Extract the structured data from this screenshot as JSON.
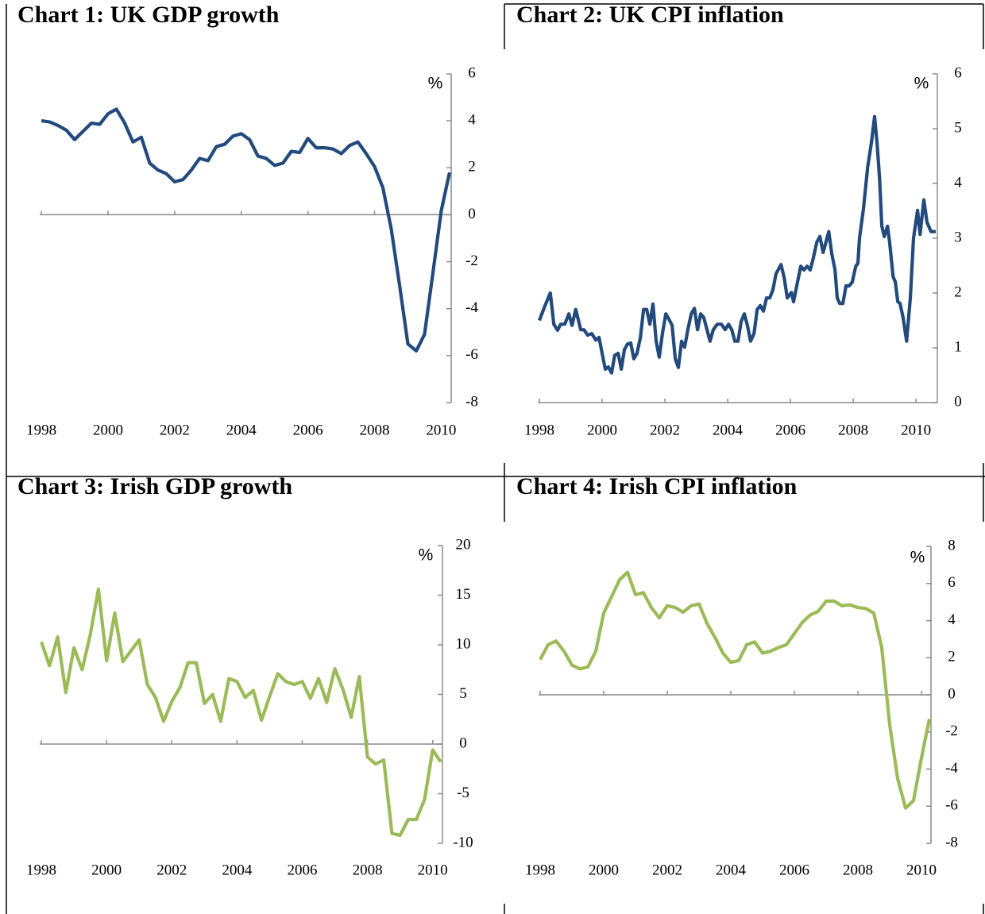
{
  "chart_data": [
    {
      "type": "line",
      "title": "Chart 1: UK GDP growth",
      "ylabel": "%",
      "color": "#234a7c",
      "x": [
        1998,
        1998.25,
        1998.5,
        1998.75,
        1999,
        1999.25,
        1999.5,
        1999.75,
        2000,
        2000.25,
        2000.5,
        2000.75,
        2001,
        2001.25,
        2001.5,
        2001.75,
        2002,
        2002.25,
        2002.5,
        2002.75,
        2003,
        2003.25,
        2003.5,
        2003.75,
        2004,
        2004.25,
        2004.5,
        2004.75,
        2005,
        2005.25,
        2005.5,
        2005.75,
        2006,
        2006.25,
        2006.5,
        2006.75,
        2007,
        2007.25,
        2007.5,
        2007.75,
        2008,
        2008.25,
        2008.5,
        2008.75,
        2009,
        2009.25,
        2009.5,
        2009.75,
        2010,
        2010.25
      ],
      "values": [
        4.0,
        3.95,
        3.8,
        3.6,
        3.2,
        3.55,
        3.9,
        3.85,
        4.3,
        4.5,
        3.9,
        3.1,
        3.3,
        2.2,
        1.9,
        1.75,
        1.4,
        1.5,
        1.9,
        2.4,
        2.3,
        2.9,
        3.0,
        3.35,
        3.45,
        3.2,
        2.5,
        2.4,
        2.1,
        2.2,
        2.7,
        2.65,
        3.25,
        2.85,
        2.85,
        2.8,
        2.6,
        2.95,
        3.1,
        2.6,
        2.05,
        1.15,
        -0.6,
        -3.0,
        -5.5,
        -5.8,
        -5.1,
        -2.5,
        0.15,
        1.8
      ],
      "xlim": [
        1997.95,
        2010.3
      ],
      "xticks": [
        1998,
        2000,
        2002,
        2004,
        2006,
        2008,
        2010
      ],
      "ylim": [
        -8,
        6
      ],
      "yticks": [
        -8,
        -6,
        -4,
        -2,
        0,
        2,
        4,
        6
      ]
    },
    {
      "type": "line",
      "title": "Chart 2: UK CPI inflation",
      "ylabel": "%",
      "color": "#234a7c",
      "x": [
        1998.0,
        1998.18,
        1998.35,
        1998.46,
        1998.58,
        1998.68,
        1998.81,
        1998.94,
        1999.04,
        1999.16,
        1999.32,
        1999.42,
        1999.54,
        1999.67,
        1999.8,
        1999.9,
        2000.0,
        2000.1,
        2000.2,
        2000.3,
        2000.4,
        2000.51,
        2000.61,
        2000.71,
        2000.81,
        2000.91,
        2001.01,
        2001.11,
        2001.22,
        2001.32,
        2001.42,
        2001.52,
        2001.62,
        2001.72,
        2001.82,
        2001.92,
        2002.03,
        2002.13,
        2002.23,
        2002.33,
        2002.43,
        2002.53,
        2002.63,
        2002.73,
        2002.84,
        2002.94,
        2003.04,
        2003.14,
        2003.24,
        2003.34,
        2003.44,
        2003.54,
        2003.67,
        2003.8,
        2003.92,
        2004.03,
        2004.13,
        2004.23,
        2004.33,
        2004.43,
        2004.53,
        2004.63,
        2004.73,
        2004.84,
        2004.94,
        2005.04,
        2005.14,
        2005.24,
        2005.34,
        2005.44,
        2005.54,
        2005.7,
        2005.8,
        2005.9,
        2006.03,
        2006.1,
        2006.2,
        2006.33,
        2006.43,
        2006.53,
        2006.63,
        2006.73,
        2006.84,
        2006.94,
        2007.04,
        2007.11,
        2007.22,
        2007.32,
        2007.42,
        2007.49,
        2007.57,
        2007.67,
        2007.77,
        2007.87,
        2007.97,
        2008.08,
        2008.15,
        2008.2,
        2008.33,
        2008.46,
        2008.58,
        2008.68,
        2008.76,
        2008.84,
        2008.91,
        2008.99,
        2009.09,
        2009.16,
        2009.27,
        2009.34,
        2009.42,
        2009.49,
        2009.59,
        2009.7,
        2009.82,
        2009.92,
        2010.05,
        2010.13,
        2010.25,
        2010.35,
        2010.48,
        2010.63
      ],
      "values": [
        1.5,
        1.77,
        2.0,
        1.43,
        1.32,
        1.43,
        1.43,
        1.62,
        1.41,
        1.7,
        1.33,
        1.33,
        1.23,
        1.26,
        1.14,
        1.19,
        0.9,
        0.61,
        0.65,
        0.54,
        0.86,
        0.9,
        0.61,
        0.97,
        1.07,
        1.09,
        0.8,
        0.9,
        1.19,
        1.7,
        1.7,
        1.43,
        1.8,
        1.12,
        0.83,
        1.26,
        1.62,
        1.52,
        1.41,
        0.8,
        0.64,
        1.12,
        1.01,
        1.33,
        1.62,
        1.72,
        1.33,
        1.62,
        1.55,
        1.33,
        1.12,
        1.33,
        1.43,
        1.43,
        1.33,
        1.43,
        1.33,
        1.12,
        1.12,
        1.48,
        1.62,
        1.41,
        1.12,
        1.26,
        1.7,
        1.77,
        1.67,
        1.91,
        1.91,
        2.06,
        2.35,
        2.52,
        2.28,
        1.91,
        2.01,
        1.84,
        2.13,
        2.49,
        2.42,
        2.49,
        2.42,
        2.64,
        2.93,
        3.03,
        2.74,
        2.88,
        3.12,
        2.71,
        2.42,
        1.91,
        1.81,
        1.81,
        2.13,
        2.13,
        2.2,
        2.49,
        2.54,
        3.0,
        3.55,
        4.3,
        4.74,
        5.22,
        4.74,
        4.09,
        3.22,
        3.03,
        3.22,
        2.93,
        2.3,
        2.2,
        1.84,
        1.81,
        1.55,
        1.12,
        1.91,
        3.0,
        3.51,
        3.07,
        3.7,
        3.29,
        3.12,
        3.12
      ],
      "xlim": [
        1997.95,
        2010.68
      ],
      "xticks": [
        1998,
        2000,
        2002,
        2004,
        2006,
        2008,
        2010
      ],
      "ylim": [
        0,
        6
      ],
      "yticks": [
        0,
        1,
        2,
        3,
        4,
        5,
        6
      ]
    },
    {
      "type": "line",
      "title": "Chart 3: Irish GDP growth",
      "ylabel": "%",
      "color": "#9bbb59",
      "x": [
        1998,
        1998.25,
        1998.5,
        1998.75,
        1999,
        1999.25,
        1999.5,
        1999.75,
        2000,
        2000.25,
        2000.5,
        2000.75,
        2001,
        2001.25,
        2001.5,
        2001.75,
        2002,
        2002.25,
        2002.5,
        2002.75,
        2003,
        2003.25,
        2003.5,
        2003.75,
        2004,
        2004.25,
        2004.5,
        2004.75,
        2005,
        2005.25,
        2005.5,
        2005.75,
        2006,
        2006.25,
        2006.5,
        2006.75,
        2007,
        2007.25,
        2007.5,
        2007.75,
        2008,
        2008.25,
        2008.5,
        2008.75,
        2009,
        2009.25,
        2009.5,
        2009.75,
        2010,
        2010.25
      ],
      "values": [
        10.3,
        7.9,
        10.8,
        5.2,
        9.7,
        7.5,
        11.0,
        15.6,
        8.4,
        13.2,
        8.3,
        9.4,
        10.5,
        6.0,
        4.7,
        2.3,
        4.3,
        5.7,
        8.2,
        8.2,
        4.1,
        5.0,
        2.3,
        6.6,
        6.3,
        4.7,
        5.4,
        2.4,
        4.8,
        7.1,
        6.3,
        6.0,
        6.3,
        4.6,
        6.6,
        4.2,
        7.6,
        5.5,
        2.7,
        6.8,
        -1.3,
        -2.0,
        -1.6,
        -9.0,
        -9.2,
        -7.6,
        -7.6,
        -5.6,
        -0.6,
        -1.8
      ],
      "xlim": [
        1997.95,
        2010.3
      ],
      "xticks": [
        1998,
        2000,
        2002,
        2004,
        2006,
        2008,
        2010
      ],
      "ylim": [
        -10,
        20
      ],
      "yticks": [
        -10,
        -5,
        0,
        5,
        10,
        15,
        20
      ]
    },
    {
      "type": "line",
      "title": "Chart 4: Irish CPI inflation",
      "ylabel": "%",
      "color": "#9bbb59",
      "x": [
        1998,
        1998.25,
        1998.5,
        1998.75,
        1999,
        1999.25,
        1999.5,
        1999.75,
        2000,
        2000.25,
        2000.5,
        2000.75,
        2001,
        2001.25,
        2001.5,
        2001.75,
        2002,
        2002.25,
        2002.5,
        2002.75,
        2003,
        2003.25,
        2003.5,
        2003.75,
        2004,
        2004.25,
        2004.5,
        2004.75,
        2005,
        2005.25,
        2005.5,
        2005.75,
        2006,
        2006.25,
        2006.5,
        2006.75,
        2007,
        2007.25,
        2007.5,
        2007.75,
        2008,
        2008.25,
        2008.5,
        2008.75,
        2009,
        2009.25,
        2009.5,
        2009.75,
        2010,
        2010.25
      ],
      "values": [
        1.9,
        2.7,
        2.9,
        2.35,
        1.6,
        1.4,
        1.5,
        2.35,
        4.4,
        5.3,
        6.2,
        6.6,
        5.4,
        5.5,
        4.7,
        4.15,
        4.8,
        4.7,
        4.45,
        4.8,
        4.9,
        3.85,
        3.1,
        2.25,
        1.75,
        1.85,
        2.7,
        2.85,
        2.25,
        2.35,
        2.55,
        2.7,
        3.3,
        3.9,
        4.3,
        4.5,
        5.05,
        5.05,
        4.8,
        4.85,
        4.7,
        4.65,
        4.4,
        2.55,
        -1.6,
        -4.5,
        -6.1,
        -5.7,
        -3.4,
        -1.3
      ],
      "xlim": [
        1997.95,
        2010.3
      ],
      "xticks": [
        1998,
        2000,
        2002,
        2004,
        2006,
        2008,
        2010
      ],
      "ylim": [
        -8,
        8
      ],
      "yticks": [
        -8,
        -6,
        -4,
        -2,
        0,
        2,
        4,
        6,
        8
      ]
    }
  ]
}
